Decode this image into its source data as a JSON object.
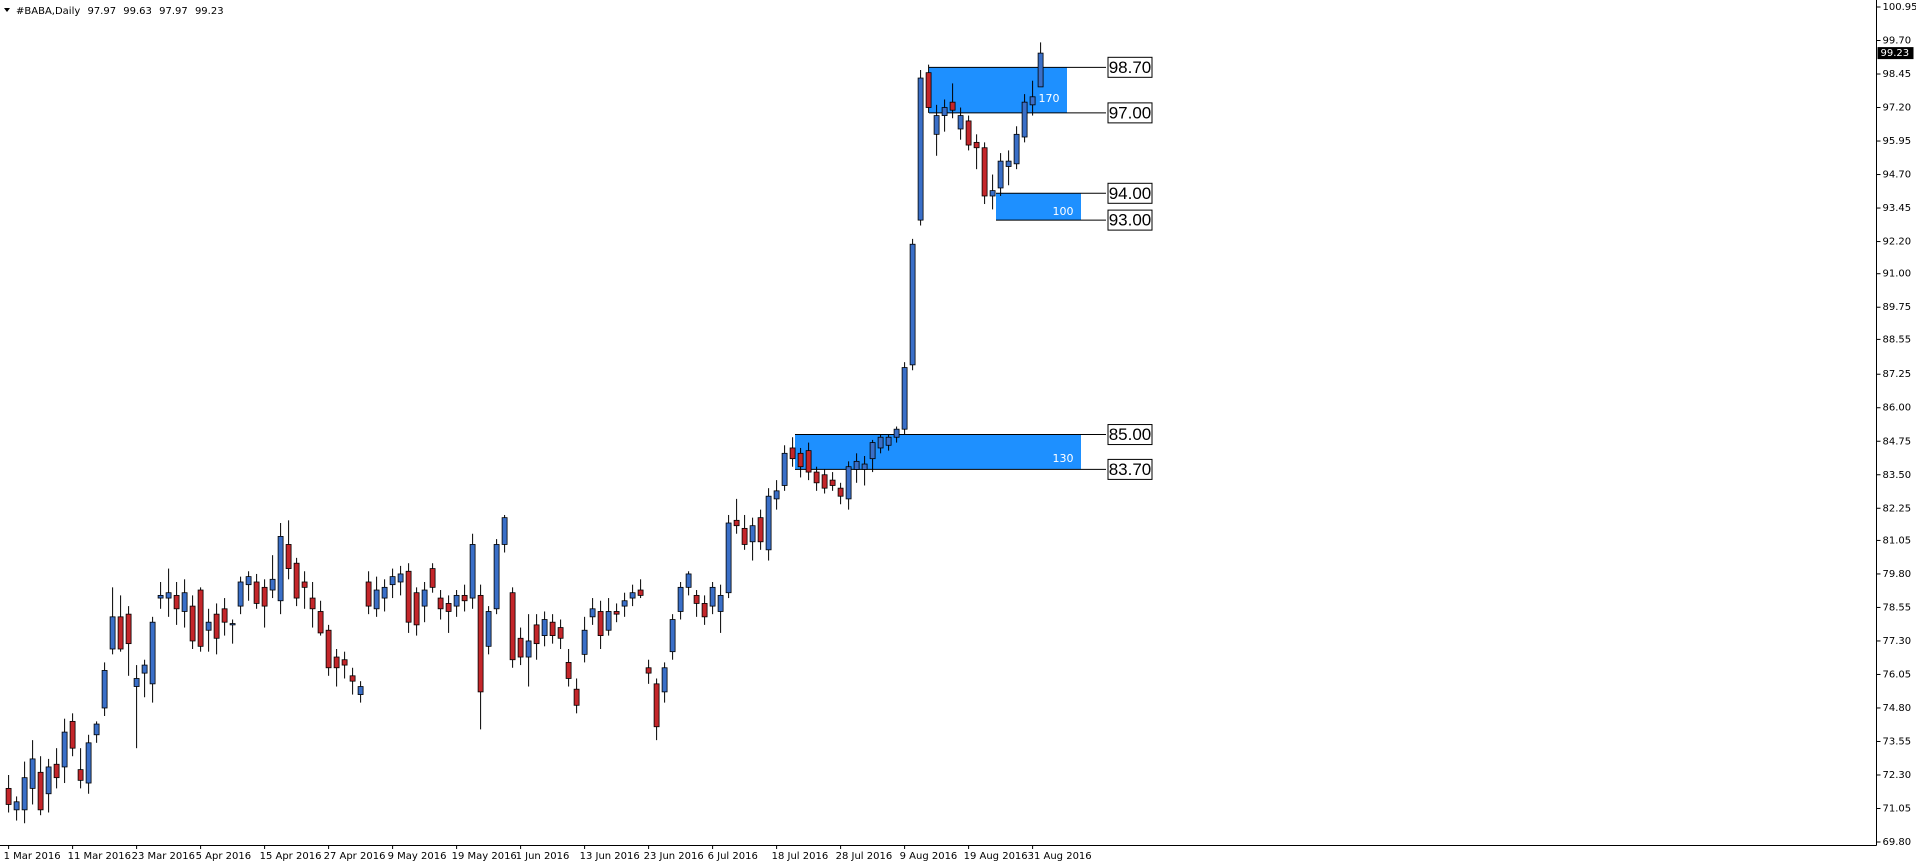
{
  "chart_data": {
    "type": "candlestick",
    "symbol": "#BABA,Daily",
    "ohlc": [
      97.97,
      99.63,
      97.97,
      99.23
    ],
    "up_color": "#3a6fc8",
    "down_color": "#c4262a",
    "zone_color": "#1e90ff",
    "categories": [
      "1 Mar 2016",
      null,
      null,
      null,
      null,
      null,
      null,
      null,
      "11 Mar 2016",
      null,
      null,
      null,
      null,
      null,
      null,
      null,
      "23 Mar 2016",
      null,
      null,
      null,
      null,
      null,
      null,
      null,
      "5 Apr 2016",
      null,
      null,
      null,
      null,
      null,
      null,
      null,
      "15 Apr 2016",
      null,
      null,
      null,
      null,
      null,
      null,
      null,
      "27 Apr 2016",
      null,
      null,
      null,
      null,
      null,
      null,
      null,
      "9 May 2016",
      null,
      null,
      null,
      null,
      null,
      null,
      null,
      "19 May 2016",
      null,
      null,
      null,
      null,
      null,
      null,
      null,
      "1 Jun 2016",
      null,
      null,
      null,
      null,
      null,
      null,
      null,
      "13 Jun 2016",
      null,
      null,
      null,
      null,
      null,
      null,
      null,
      "23 Jun 2016",
      null,
      null,
      null,
      null,
      null,
      null,
      null,
      "6 Jul 2016",
      null,
      null,
      null,
      null,
      null,
      null,
      null,
      "18 Jul 2016",
      null,
      null,
      null,
      null,
      null,
      null,
      null,
      "28 Jul 2016",
      null,
      null,
      null,
      null,
      null,
      null,
      null,
      "9 Aug 2016",
      null,
      null,
      null,
      null,
      null,
      null,
      null,
      "19 Aug 2016",
      null,
      null,
      null,
      null,
      null,
      null,
      null,
      "31 Aug 2016",
      null
    ],
    "open": [
      71.8,
      71.0,
      71.0,
      71.8,
      72.4,
      71.6,
      72.7,
      72.6,
      74.3,
      72.5,
      72.0,
      73.8,
      74.8,
      77.0,
      78.2,
      78.3,
      75.6,
      76.1,
      75.7,
      78.9,
      78.9,
      79.0,
      78.4,
      78.6,
      79.2,
      77.7,
      78.3,
      78.5,
      77.9,
      78.6,
      79.4,
      79.5,
      79.3,
      79.2,
      78.8,
      80.9,
      80.2,
      79.5,
      78.9,
      78.4,
      77.7,
      76.7,
      76.6,
      76.0,
      75.3,
      79.5,
      78.5,
      78.9,
      79.4,
      79.5,
      79.9,
      79.1,
      78.6,
      80.0,
      78.9,
      78.7,
      78.6,
      79.0,
      78.9,
      79.0,
      77.1,
      78.5,
      80.9,
      79.1,
      77.4,
      76.7,
      77.9,
      77.5,
      78.0,
      77.8,
      76.5,
      75.5,
      76.8,
      78.2,
      78.4,
      77.7,
      78.4,
      78.6,
      78.9,
      79.2,
      76.3,
      75.7,
      75.4,
      76.9,
      78.4,
      79.3,
      79.0,
      78.7,
      78.6,
      78.4,
      79.1,
      81.8,
      81.5,
      81.0,
      81.9,
      80.7,
      82.6,
      83.1,
      84.5,
      84.3,
      84.4,
      83.6,
      83.5,
      83.3,
      83.0,
      82.6,
      83.7,
      83.7,
      84.1,
      84.5,
      84.6,
      84.9,
      85.2,
      87.6,
      93.0,
      98.5,
      96.2,
      96.9,
      97.4,
      96.4,
      96.7,
      95.9,
      95.7,
      93.9,
      94.2,
      95.0,
      95.1,
      96.1,
      97.3,
      97.97
    ],
    "high": [
      72.3,
      71.5,
      72.8,
      73.6,
      73.0,
      72.9,
      73.3,
      74.4,
      74.6,
      73.3,
      73.8,
      74.3,
      76.5,
      79.3,
      79.0,
      78.6,
      76.4,
      76.6,
      78.2,
      79.5,
      80.0,
      79.5,
      79.6,
      79.0,
      79.3,
      78.5,
      78.7,
      78.9,
      78.1,
      79.7,
      79.9,
      79.8,
      79.6,
      80.5,
      81.7,
      81.8,
      80.4,
      79.9,
      79.5,
      78.8,
      77.9,
      77.0,
      76.9,
      76.3,
      75.8,
      79.9,
      79.7,
      79.6,
      80.0,
      80.1,
      80.2,
      79.3,
      79.5,
      80.2,
      79.2,
      79.0,
      79.2,
      79.4,
      81.3,
      79.4,
      78.6,
      81.1,
      82.0,
      79.3,
      77.8,
      78.3,
      78.3,
      78.4,
      78.3,
      78.1,
      77.0,
      75.9,
      78.2,
      78.9,
      78.8,
      78.9,
      78.7,
      79.1,
      79.4,
      79.6,
      76.6,
      75.9,
      76.5,
      78.3,
      79.5,
      79.9,
      79.2,
      79.0,
      79.5,
      79.4,
      82.0,
      82.6,
      82.0,
      81.9,
      82.2,
      83.0,
      83.3,
      84.6,
      84.9,
      84.5,
      84.7,
      83.8,
      83.7,
      83.6,
      83.2,
      84.0,
      84.3,
      84.2,
      84.8,
      85.0,
      85.0,
      85.3,
      87.7,
      92.3,
      98.6,
      98.8,
      97.3,
      97.5,
      98.1,
      97.2,
      96.9,
      96.2,
      95.9,
      94.7,
      95.5,
      95.6,
      96.5,
      97.7,
      98.2,
      99.63
    ],
    "low": [
      70.9,
      70.6,
      70.5,
      71.2,
      70.8,
      70.9,
      71.8,
      72.0,
      73.0,
      71.8,
      71.6,
      73.5,
      74.5,
      76.8,
      76.9,
      76.0,
      73.3,
      75.2,
      75.0,
      78.5,
      78.2,
      77.9,
      77.8,
      77.0,
      76.9,
      76.9,
      76.8,
      77.5,
      77.2,
      78.3,
      78.8,
      78.5,
      77.8,
      78.9,
      78.3,
      79.6,
      78.6,
      78.5,
      77.8,
      77.5,
      76.0,
      75.6,
      75.9,
      75.3,
      75.0,
      78.3,
      78.2,
      78.4,
      78.9,
      79.0,
      77.6,
      77.5,
      78.0,
      79.1,
      78.1,
      77.6,
      78.2,
      78.4,
      78.5,
      74.0,
      76.8,
      78.3,
      80.6,
      76.3,
      76.4,
      75.6,
      76.6,
      77.1,
      77.2,
      77.0,
      75.6,
      74.6,
      76.5,
      77.9,
      77.0,
      77.5,
      78.0,
      78.2,
      78.6,
      78.9,
      75.7,
      73.6,
      75.0,
      76.6,
      78.1,
      79.0,
      78.2,
      77.9,
      78.3,
      77.6,
      78.9,
      81.3,
      80.7,
      80.3,
      80.7,
      80.3,
      82.2,
      82.9,
      83.8,
      83.4,
      83.3,
      82.9,
      82.8,
      82.9,
      82.4,
      82.2,
      83.2,
      83.1,
      83.6,
      84.3,
      84.4,
      84.7,
      85.0,
      87.4,
      92.8,
      97.0,
      95.4,
      96.3,
      96.8,
      96.0,
      95.6,
      94.9,
      93.6,
      93.4,
      93.9,
      94.3,
      94.9,
      95.9,
      96.9,
      97.97
    ],
    "close": [
      71.2,
      71.3,
      72.2,
      72.9,
      71.0,
      72.6,
      72.2,
      73.9,
      73.3,
      72.1,
      73.5,
      74.2,
      76.2,
      78.2,
      77.0,
      77.2,
      75.9,
      76.4,
      78.0,
      79.0,
      79.1,
      78.5,
      79.1,
      77.3,
      77.1,
      78.0,
      77.4,
      78.0,
      77.95,
      79.5,
      79.7,
      78.7,
      78.6,
      79.6,
      81.2,
      80.0,
      78.9,
      79.3,
      78.5,
      77.6,
      76.3,
      76.3,
      76.4,
      75.8,
      75.6,
      78.6,
      79.2,
      79.3,
      79.7,
      79.8,
      78.0,
      77.9,
      79.2,
      79.3,
      78.5,
      78.4,
      79.0,
      78.8,
      80.9,
      75.4,
      78.4,
      80.9,
      81.9,
      76.6,
      76.7,
      77.3,
      77.2,
      78.1,
      77.5,
      77.4,
      75.9,
      74.9,
      77.7,
      78.5,
      77.5,
      78.4,
      78.3,
      78.8,
      79.1,
      79.0,
      76.1,
      74.1,
      76.3,
      78.1,
      79.3,
      79.8,
      78.7,
      78.2,
      79.3,
      79.0,
      81.7,
      81.6,
      80.9,
      81.6,
      81.0,
      82.7,
      82.9,
      84.3,
      84.1,
      83.8,
      83.6,
      83.2,
      83.0,
      83.1,
      82.7,
      83.8,
      84.0,
      83.9,
      84.7,
      84.9,
      84.9,
      85.2,
      87.5,
      92.1,
      98.3,
      97.2,
      96.9,
      97.2,
      97.1,
      96.9,
      95.8,
      95.7,
      93.9,
      94.1,
      95.2,
      95.2,
      96.2,
      97.4,
      97.6,
      99.23
    ],
    "ylim": [
      69.8,
      100.95
    ],
    "yticks": [
      {
        "value": 69.8,
        "label": "69.80"
      },
      71.05,
      {
        "value": 72.3,
        "label": "72.30"
      },
      73.55,
      {
        "value": 74.8,
        "label": "74.80"
      },
      76.05,
      {
        "value": 77.3,
        "label": "77.30"
      },
      78.55,
      {
        "value": 79.8,
        "label": "79.80"
      },
      81.05,
      82.25,
      {
        "value": 83.5,
        "label": "83.50"
      },
      84.75,
      {
        "value": 86,
        "label": "86.00"
      },
      87.25,
      88.55,
      89.75,
      {
        "value": 91,
        "label": "91.00"
      },
      {
        "value": 92.2,
        "label": "92.20"
      },
      93.45,
      {
        "value": 94.7,
        "label": "94.70"
      },
      95.95,
      {
        "value": 97.2,
        "label": "97.20"
      },
      98.45,
      {
        "value": 99.7,
        "label": "99.70"
      },
      100.95
    ],
    "zones": [
      {
        "size": 170,
        "levels": [
          {
            "value": 98.7,
            "label": "98.70"
          },
          {
            "value": 97,
            "label": "97.00"
          }
        ]
      },
      {
        "size": 100,
        "levels": [
          {
            "value": 94,
            "label": "94.00"
          },
          {
            "value": 93,
            "label": "93.00"
          }
        ]
      },
      {
        "size": 130,
        "levels": [
          {
            "value": 85,
            "label": "85.00"
          },
          {
            "value": 83.7,
            "label": "83.70"
          }
        ]
      }
    ]
  }
}
